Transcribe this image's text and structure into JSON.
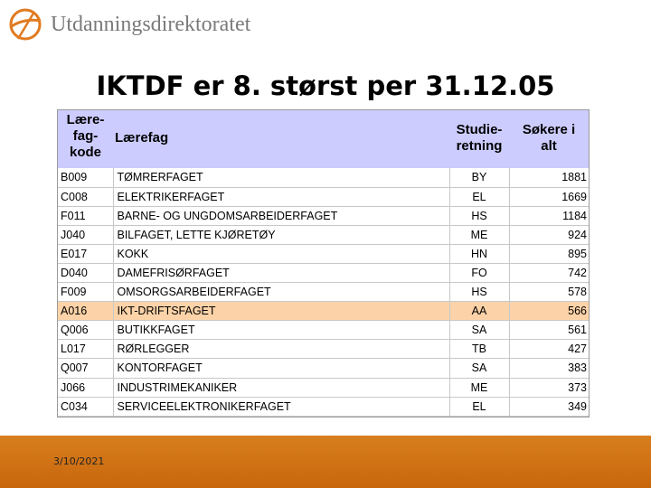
{
  "header": {
    "logo_text": "Utdanningsdirektoratet",
    "logo_icon": "udir-logo-icon",
    "logo_color": "#e07a1f"
  },
  "slide": {
    "title": "IKTDF er 8. størst per 31.12.05"
  },
  "table": {
    "headers": {
      "code": "Lære- fag- kode",
      "subject": "Lærefag",
      "program": "Studie- retning",
      "applicants": "Søkere i alt"
    },
    "rows": [
      {
        "code": "B009",
        "subject": "TØMRERFAGET",
        "program": "BY",
        "applicants": "1881"
      },
      {
        "code": "C008",
        "subject": "ELEKTRIKERFAGET",
        "program": "EL",
        "applicants": "1669"
      },
      {
        "code": "F011",
        "subject": "BARNE- OG UNGDOMSARBEIDERFAGET",
        "program": "HS",
        "applicants": "1184"
      },
      {
        "code": "J040",
        "subject": "BILFAGET, LETTE KJØRETØY",
        "program": "ME",
        "applicants": "924"
      },
      {
        "code": "E017",
        "subject": "KOKK",
        "program": "HN",
        "applicants": "895"
      },
      {
        "code": "D040",
        "subject": "DAMEFRISØRFAGET",
        "program": "FO",
        "applicants": "742"
      },
      {
        "code": "F009",
        "subject": "OMSORGSARBEIDERFAGET",
        "program": "HS",
        "applicants": "578"
      },
      {
        "code": "A016",
        "subject": "IKT-DRIFTSFAGET",
        "program": "AA",
        "applicants": "566"
      },
      {
        "code": "Q006",
        "subject": "BUTIKKFAGET",
        "program": "SA",
        "applicants": "561"
      },
      {
        "code": "L017",
        "subject": "RØRLEGGER",
        "program": "TB",
        "applicants": "427"
      },
      {
        "code": "Q007",
        "subject": "KONTORFAGET",
        "program": "SA",
        "applicants": "383"
      },
      {
        "code": "J066",
        "subject": "INDUSTRIMEKANIKER",
        "program": "ME",
        "applicants": "373"
      },
      {
        "code": "C034",
        "subject": "SERVICEELEKTRONIKERFAGET",
        "program": "EL",
        "applicants": "349"
      }
    ],
    "highlight_color": "#fcd3a8",
    "header_color": "#ccccff"
  },
  "footer": {
    "date": "3/10/2021",
    "band_color": "#d07316"
  }
}
